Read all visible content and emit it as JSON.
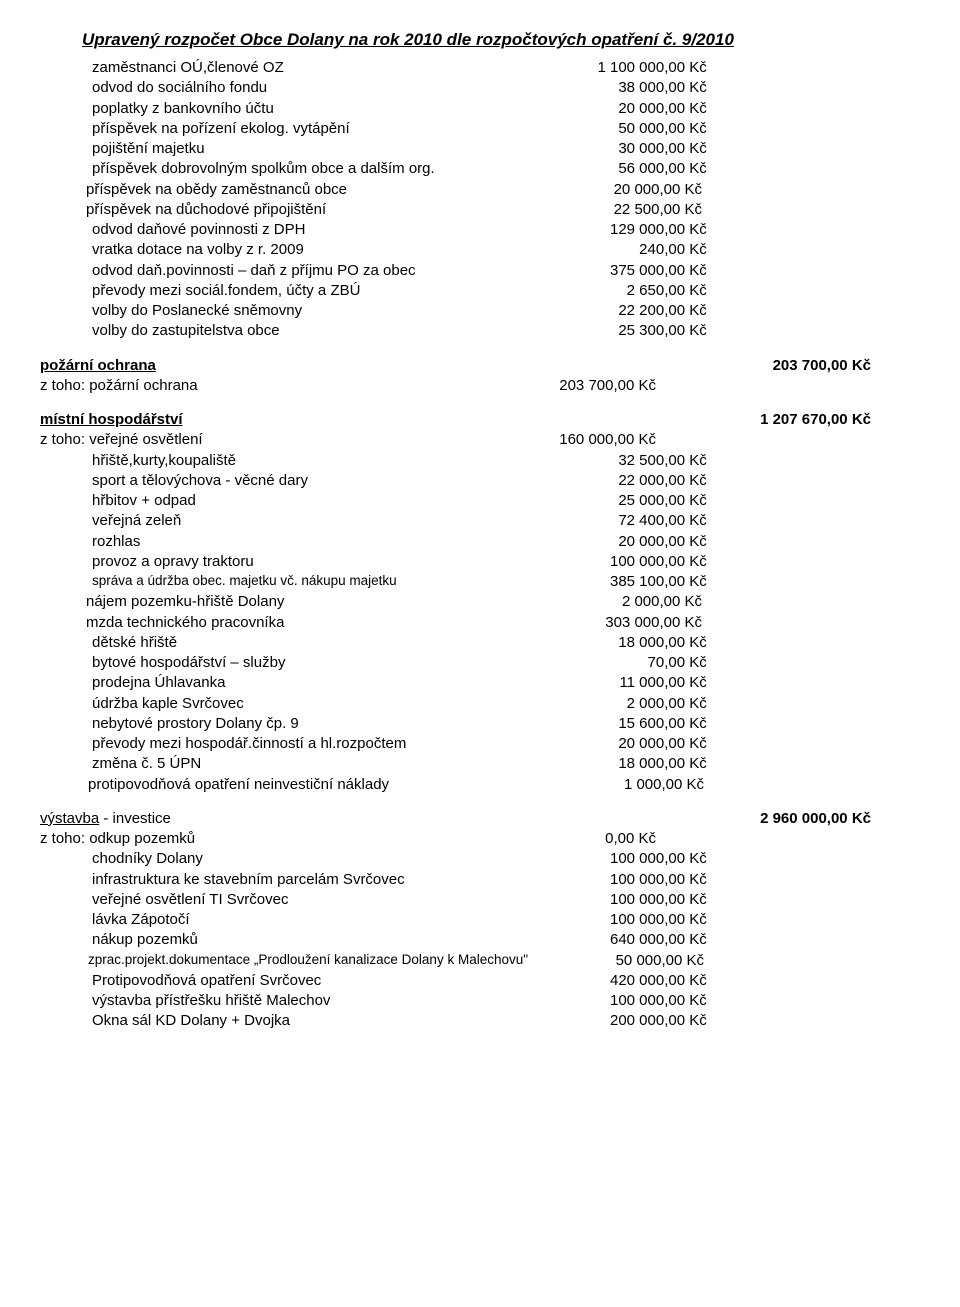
{
  "title": "Upravený rozpočet Obce Dolany na rok 2010 dle rozpočtových opatření č. 9/2010",
  "block1": [
    {
      "l": "zaměstnanci OÚ,členové OZ",
      "v": "1 100 000,00 Kč"
    },
    {
      "l": "odvod do sociálního fondu",
      "v": "38 000,00 Kč"
    },
    {
      "l": "poplatky z bankovního účtu",
      "v": "20 000,00 Kč"
    },
    {
      "l": "příspěvek na pořízení ekolog. vytápění",
      "v": "50 000,00 Kč"
    },
    {
      "l": "pojištění majetku",
      "v": "30 000,00 Kč"
    },
    {
      "l": "příspěvek dobrovolným spolkům obce  a dalším org.",
      "v": "56 000,00 Kč"
    },
    {
      "l": "příspěvek na obědy zaměstnanců obce",
      "v": "20 000,00 Kč",
      "cls": "indent1b"
    },
    {
      "l": "příspěvek na důchodové připojištění",
      "v": "22 500,00 Kč",
      "cls": "indent1b"
    },
    {
      "l": "odvod daňové povinnosti z DPH",
      "v": "129 000,00 Kč"
    },
    {
      "l": "vratka dotace na volby z r. 2009",
      "v": "240,00 Kč"
    },
    {
      "l": "odvod daň.povinnosti – daň z příjmu PO za obec",
      "v": "375 000,00 Kč"
    },
    {
      "l": "převody mezi sociál.fondem, účty a ZBÚ",
      "v": "2 650,00 Kč"
    },
    {
      "l": "volby do Poslanecké sněmovny",
      "v": "22 200,00 Kč"
    },
    {
      "l": "volby do zastupitelstva obce",
      "v": "25 300,00 Kč"
    }
  ],
  "pozarni": {
    "head": "požární ochrana",
    "total": "203 700,00 Kč",
    "rows": [
      {
        "l": "z toho:  požární ochrana",
        "v": "203 700,00 Kč",
        "cls": "ztoho"
      }
    ]
  },
  "mistni": {
    "head": "místní hospodářství",
    "total": "1 207 670,00 Kč",
    "rows": [
      {
        "l": "z toho:   veřejné osvětlení",
        "v": "160 000,00 Kč",
        "cls": "ztoho"
      },
      {
        "l": "hřiště,kurty,koupaliště",
        "v": "32 500,00 Kč"
      },
      {
        "l": "sport a tělovýchova - věcné dary",
        "v": "22 000,00 Kč"
      },
      {
        "l": "hřbitov + odpad",
        "v": "25 000,00 Kč"
      },
      {
        "l": "veřejná zeleň",
        "v": "72 400,00 Kč"
      },
      {
        "l": "rozhlas",
        "v": "20 000,00 Kč"
      },
      {
        "l": "provoz a opravy traktoru",
        "v": "100 000,00 Kč"
      },
      {
        "l": "správa a údržba obec. majetku vč. nákupu majetku",
        "v": "385 100,00 Kč",
        "small": true
      },
      {
        "l": "nájem pozemku-hřiště Dolany",
        "v": "2 000,00 Kč",
        "cls": "indent1b"
      },
      {
        "l": "mzda technického pracovníka",
        "v": "303 000,00 Kč",
        "cls": "indent1b"
      },
      {
        "l": "dětské hřiště",
        "v": "18 000,00 Kč"
      },
      {
        "l": "bytové hospodářství – služby",
        "v": "70,00 Kč"
      },
      {
        "l": "prodejna Úhlavanka",
        "v": "11 000,00 Kč"
      },
      {
        "l": "údržba kaple Svrčovec",
        "v": "2 000,00 Kč"
      },
      {
        "l": "nebytové prostory Dolany čp. 9",
        "v": "15 600,00 Kč"
      },
      {
        "l": "převody mezi hospodář.činností a hl.rozpočtem",
        "v": "20 000,00 Kč"
      },
      {
        "l": "změna č. 5 ÚPN",
        "v": "18 000,00 Kč"
      },
      {
        "l": "protipovodňová opatření neinvestiční náklady",
        "v": "1 000,00 Kč",
        "cls": "indent2"
      }
    ]
  },
  "vystavba": {
    "head": "výstavba",
    "tail": " - investice",
    "total": "2 960 000,00 Kč",
    "rows": [
      {
        "l": "z toho:  odkup pozemků",
        "v": "0,00 Kč",
        "cls": "ztoho"
      },
      {
        "l": "chodníky Dolany",
        "v": "100 000,00 Kč"
      },
      {
        "l": "infrastruktura ke stavebním parcelám Svrčovec",
        "v": "100 000,00 Kč"
      },
      {
        "l": "veřejné osvětlení TI Svrčovec",
        "v": "100 000,00 Kč"
      },
      {
        "l": "lávka Zápotočí",
        "v": "100 000,00 Kč"
      },
      {
        "l": "nákup pozemků",
        "v": "640 000,00 Kč"
      },
      {
        "l": "zprac.projekt.dokumentace „Prodloužení kanalizace Dolany k Malechovu\"",
        "v": "50 000,00 Kč",
        "small": true,
        "cls": "indent2"
      },
      {
        "l": "Protipovodňová opatření Svrčovec",
        "v": "420 000,00 Kč"
      },
      {
        "l": "výstavba přístřešku hřiště Malechov",
        "v": "100 000,00 Kč"
      },
      {
        "l": "Okna sál KD Dolany + Dvojka",
        "v": "200 000,00 Kč"
      }
    ]
  }
}
